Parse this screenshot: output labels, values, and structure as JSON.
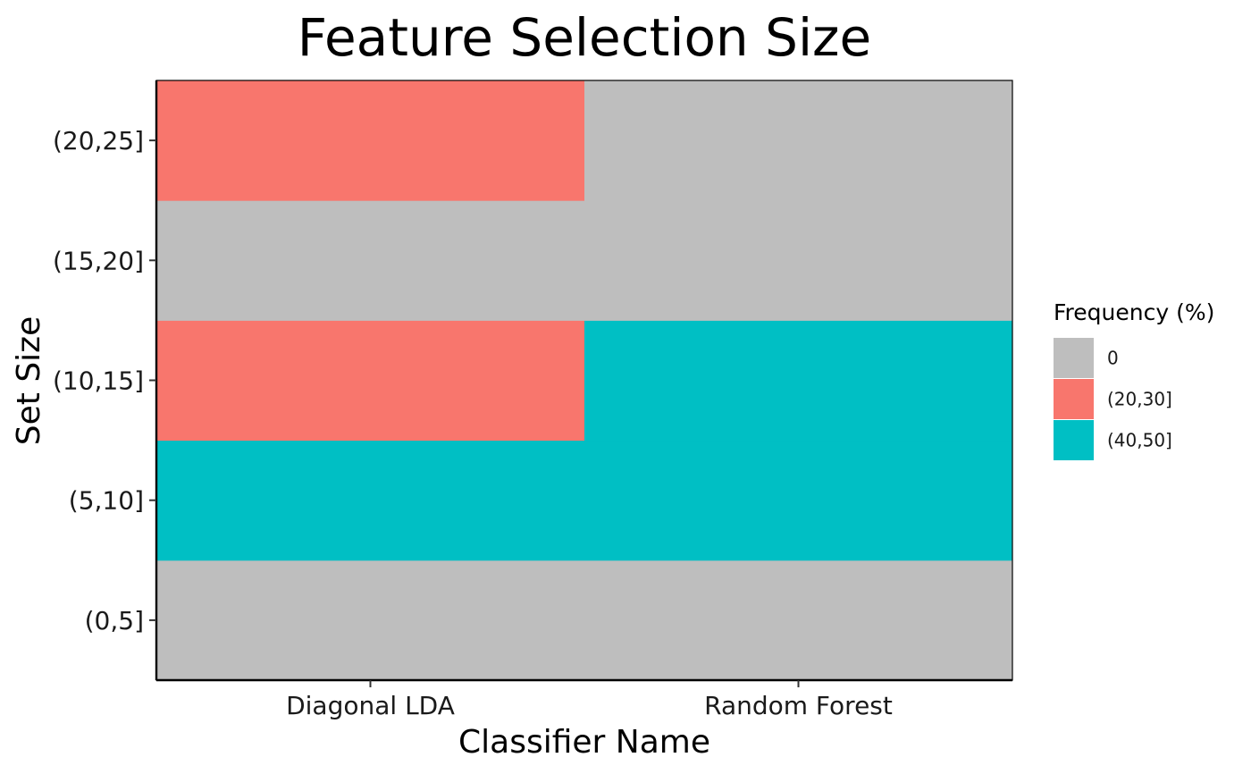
{
  "chart_data": {
    "type": "heatmap",
    "title": "Feature Selection Size",
    "xlabel": "Classifier Name",
    "ylabel": "Set Size",
    "x_categories": [
      "Diagonal LDA",
      "Random Forest"
    ],
    "y_categories": [
      "(0,5]",
      "(5,10]",
      "(10,15]",
      "(15,20]",
      "(20,25]"
    ],
    "cells": [
      {
        "x": "Diagonal LDA",
        "y": "(0,5]",
        "value": "0"
      },
      {
        "x": "Diagonal LDA",
        "y": "(5,10]",
        "value": "(40,50]"
      },
      {
        "x": "Diagonal LDA",
        "y": "(10,15]",
        "value": "(20,30]"
      },
      {
        "x": "Diagonal LDA",
        "y": "(15,20]",
        "value": "0"
      },
      {
        "x": "Diagonal LDA",
        "y": "(20,25]",
        "value": "(20,30]"
      },
      {
        "x": "Random Forest",
        "y": "(0,5]",
        "value": "0"
      },
      {
        "x": "Random Forest",
        "y": "(5,10]",
        "value": "(40,50]"
      },
      {
        "x": "Random Forest",
        "y": "(10,15]",
        "value": "(40,50]"
      },
      {
        "x": "Random Forest",
        "y": "(15,20]",
        "value": "0"
      },
      {
        "x": "Random Forest",
        "y": "(20,25]",
        "value": "0"
      }
    ],
    "legend": {
      "title": "Frequency (%)",
      "position": "right",
      "items": [
        {
          "label": "0",
          "color": "#bebebe"
        },
        {
          "label": "(20,30]",
          "color": "#f8766d"
        },
        {
          "label": "(40,50]",
          "color": "#00bfc4"
        }
      ]
    },
    "grid": false
  }
}
